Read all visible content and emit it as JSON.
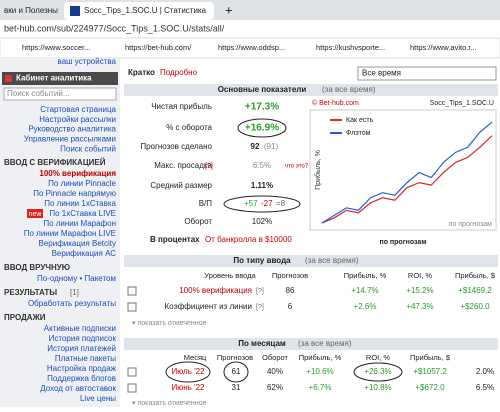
{
  "browser": {
    "tabs": [
      "вки и Полезны",
      "Socc_Tips_1.SOC.U | Статистика"
    ],
    "new_tab": "+",
    "address": "bet-hub.com/sub/224977/Socc_Tips_1.SOC.U/stats/all/",
    "bookmarks": [
      "https://www.soccer...",
      "https://bet-hub.com/",
      "https://www.oddsp...",
      "https://kushvsporte...",
      "https://www.avito.r..."
    ]
  },
  "sidebar": {
    "top": "ваш устройства",
    "title": "Кабинет аналитика",
    "search": "Поиск событий...",
    "menu": [
      "Стартовая страница",
      "Настройки рассылки",
      "Руководство аналитика",
      "Управление рассылками",
      "Поиск событий"
    ],
    "sections": [
      {
        "heading": "ВВОД С ВЕРИФИКАЦИЕЙ",
        "badge": "new",
        "items": [
          "100% верификация",
          "По линии Pinnacle",
          "По Pinnacle напрямую",
          "По линии 1xСтавка",
          "По 1xСтавка LIVE",
          "По линии Марафон",
          "По линии Марафон LIVE",
          "Верификация Betcity",
          "Верификация АС"
        ]
      },
      {
        "heading": "ВВОД ВРУЧНУЮ",
        "items": [
          "По-одному • Пакетом"
        ]
      },
      {
        "heading": "РЕЗУЛЬТАТЫ",
        "count": "[1]",
        "items": [
          "Обработать результаты"
        ]
      },
      {
        "heading": "ПРОДАЖИ",
        "items": [
          "Активные подписки",
          "История подписок",
          "История платежей",
          "Платные пакеты",
          "Настройка продаж",
          "Поддержка блогов",
          "Доход от автоставок",
          "Live цены"
        ]
      }
    ]
  },
  "main": {
    "view_tabs": [
      "Кратко",
      "Подробно"
    ],
    "period": "Все время",
    "summary": {
      "title": "Основные показатели",
      "period": "(за все время)",
      "rows": [
        [
          "Чистая прибыль",
          "+17.3%"
        ],
        [
          "% с оборота",
          "+16.9%"
        ],
        [
          "Прогнозов сделано",
          "92",
          "(91)"
        ],
        [
          "Макс. просадка",
          "[?]",
          "6.5%",
          "что это?"
        ],
        [
          "Средний размер",
          "1.11%"
        ],
        [
          "В/П",
          "+57",
          "-27",
          "=8"
        ],
        [
          "Оборот",
          "102%"
        ]
      ],
      "footer": [
        "В процентах",
        "От банкролла в $10000"
      ]
    },
    "chart": {
      "type": "line",
      "copyright": "© Bet-hub.com",
      "title": "Socc_Tips_1.SOC.U",
      "y_label": "Прибыль, %",
      "note": "по прогнозам",
      "x_label": "по прогнозам",
      "ylim": [
        -1,
        22
      ],
      "series": [
        {
          "name": "Как есть",
          "color": "#d62728",
          "values": [
            0,
            1,
            2.5,
            2,
            4,
            5,
            4.5,
            7,
            8,
            7.5,
            10,
            12,
            13,
            15,
            17.3
          ]
        },
        {
          "name": "Флэтом",
          "color": "#1f5fd6",
          "values": [
            0,
            1.5,
            3,
            2.5,
            5,
            6,
            5.5,
            8,
            10,
            9,
            12,
            14,
            15,
            18,
            20
          ]
        }
      ]
    },
    "by_type": {
      "title": "По типу ввода",
      "period": "(за все время)",
      "columns": [
        "Уровень ввода",
        "Прогнозов",
        "Прибыль, %",
        "ROI, %",
        "Прибыль, $"
      ],
      "rows": [
        [
          "100% верификация",
          "[?]",
          "86",
          "+14.7%",
          "+15.2%",
          "+$1469.2"
        ],
        [
          "Коэффициент из линии",
          "[?]",
          "6",
          "+2.6%",
          "+47.3%",
          "+$260.0"
        ]
      ],
      "show": "▾ показать отмеченное"
    },
    "by_month": {
      "title": "По месяцам",
      "period": "(за все время)",
      "columns": [
        "Месяц",
        "Прогнозов",
        "Оборот",
        "Прибыль, %",
        "ROI, %",
        "Прибыль, $"
      ],
      "rows": [
        [
          "Июль '22",
          "61",
          "40%",
          "+10.6%",
          "+26.3%",
          "+$1057.2",
          "2.0%"
        ],
        [
          "Июнь '22",
          "31",
          "62%",
          "+6.7%",
          "+10.8%",
          "+$672.0",
          "6.5%"
        ]
      ],
      "show": "▾ показать отмеченное"
    }
  }
}
